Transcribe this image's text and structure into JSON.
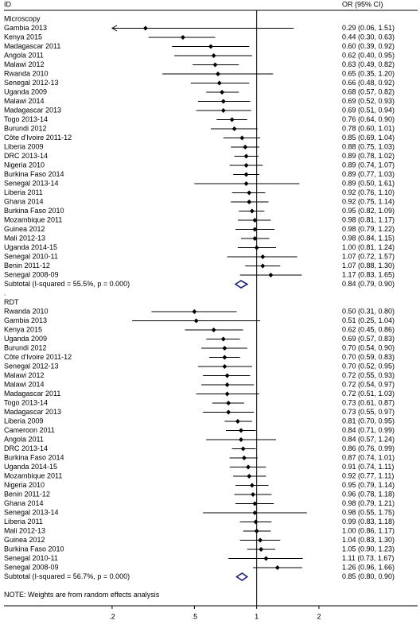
{
  "chart_data": {
    "type": "forest",
    "header": {
      "id": "ID",
      "effect": "OR (95% CI)"
    },
    "log_scale": true,
    "xlim": [
      0.06,
      6
    ],
    "xticks": [
      {
        "value": 0.2,
        "label": ".2"
      },
      {
        "value": 0.5,
        "label": ".5"
      },
      1,
      2
    ],
    "reference": 1,
    "marker_color": "#000000",
    "diamond_color": "#1a237e",
    "groups": [
      {
        "name": "Microscopy",
        "studies": [
          {
            "id": "Gambia 2013",
            "or": 0.29,
            "ci": [
              0.06,
              1.51
            ],
            "label": "0.29 (0.06, 1.51)"
          },
          {
            "id": "Kenya 2015",
            "or": 0.44,
            "ci": [
              0.3,
              0.63
            ],
            "label": "0.44 (0.30, 0.63)"
          },
          {
            "id": "Madagascar 2011",
            "or": 0.6,
            "ci": [
              0.39,
              0.92
            ],
            "label": "0.60 (0.39, 0.92)"
          },
          {
            "id": "Angola 2011",
            "or": 0.62,
            "ci": [
              0.4,
              0.95
            ],
            "label": "0.62 (0.40, 0.95)"
          },
          {
            "id": "Malawi 2012",
            "or": 0.63,
            "ci": [
              0.49,
              0.82
            ],
            "label": "0.63 (0.49, 0.82)"
          },
          {
            "id": "Rwanda 2010",
            "or": 0.65,
            "ci": [
              0.35,
              1.2
            ],
            "label": "0.65 (0.35, 1.20)"
          },
          {
            "id": "Senegal 2012-13",
            "or": 0.66,
            "ci": [
              0.48,
              0.92
            ],
            "label": "0.66 (0.48, 0.92)"
          },
          {
            "id": "Uganda 2009",
            "or": 0.68,
            "ci": [
              0.57,
              0.82
            ],
            "label": "0.68 (0.57, 0.82)"
          },
          {
            "id": "Malawi 2014",
            "or": 0.69,
            "ci": [
              0.52,
              0.93
            ],
            "label": "0.69 (0.52, 0.93)"
          },
          {
            "id": "Madagascar 2013",
            "or": 0.69,
            "ci": [
              0.51,
              0.94
            ],
            "label": "0.69 (0.51, 0.94)"
          },
          {
            "id": "Togo 2013-14",
            "or": 0.76,
            "ci": [
              0.64,
              0.9
            ],
            "label": "0.76 (0.64, 0.90)"
          },
          {
            "id": "Burundi 2012",
            "or": 0.78,
            "ci": [
              0.6,
              1.01
            ],
            "label": "0.78 (0.60, 1.01)"
          },
          {
            "id": "Côte d'Ivoire 2011-12",
            "or": 0.85,
            "ci": [
              0.69,
              1.04
            ],
            "label": "0.85 (0.69, 1.04)"
          },
          {
            "id": "Liberia 2009",
            "or": 0.88,
            "ci": [
              0.75,
              1.03
            ],
            "label": "0.88 (0.75, 1.03)"
          },
          {
            "id": "DRC 2013-14",
            "or": 0.89,
            "ci": [
              0.78,
              1.02
            ],
            "label": "0.89 (0.78, 1.02)"
          },
          {
            "id": "Nigeria 2010",
            "or": 0.89,
            "ci": [
              0.74,
              1.07
            ],
            "label": "0.89 (0.74, 1.07)"
          },
          {
            "id": "Burkina Faso 2014",
            "or": 0.89,
            "ci": [
              0.77,
              1.03
            ],
            "label": "0.89 (0.77, 1.03)"
          },
          {
            "id": "Senegal 2013-14",
            "or": 0.89,
            "ci": [
              0.5,
              1.61
            ],
            "label": "0.89 (0.50, 1.61)"
          },
          {
            "id": "Liberia 2011",
            "or": 0.92,
            "ci": [
              0.76,
              1.1
            ],
            "label": "0.92 (0.76, 1.10)"
          },
          {
            "id": "Ghana 2014",
            "or": 0.92,
            "ci": [
              0.75,
              1.14
            ],
            "label": "0.92 (0.75, 1.14)"
          },
          {
            "id": "Burkina Faso 2010",
            "or": 0.95,
            "ci": [
              0.82,
              1.09
            ],
            "label": "0.95 (0.82, 1.09)"
          },
          {
            "id": "Mozambique 2011",
            "or": 0.98,
            "ci": [
              0.81,
              1.17
            ],
            "label": "0.98 (0.81, 1.17)"
          },
          {
            "id": "Guinea 2012",
            "or": 0.98,
            "ci": [
              0.79,
              1.22
            ],
            "label": "0.98 (0.79, 1.22)"
          },
          {
            "id": "Mali 2012-13",
            "or": 0.98,
            "ci": [
              0.84,
              1.15
            ],
            "label": "0.98 (0.84, 1.15)"
          },
          {
            "id": "Uganda 2014-15",
            "or": 1.0,
            "ci": [
              0.81,
              1.24
            ],
            "label": "1.00 (0.81, 1.24)"
          },
          {
            "id": "Senegal 2010-11",
            "or": 1.07,
            "ci": [
              0.72,
              1.57
            ],
            "label": "1.07 (0.72, 1.57)"
          },
          {
            "id": "Benin 2011-12",
            "or": 1.07,
            "ci": [
              0.88,
              1.3
            ],
            "label": "1.07 (0.88, 1.30)"
          },
          {
            "id": "Senegal 2008-09",
            "or": 1.17,
            "ci": [
              0.83,
              1.65
            ],
            "label": "1.17 (0.83, 1.65)"
          }
        ],
        "subtotal": {
          "id": "Subtotal  (I-squared = 55.5%, p = 0.000)",
          "or": 0.84,
          "ci": [
            0.79,
            0.9
          ],
          "label": "0.84 (0.79, 0.90)"
        }
      },
      {
        "name": "RDT",
        "separator": ".",
        "studies": [
          {
            "id": "Rwanda 2010",
            "or": 0.5,
            "ci": [
              0.31,
              0.8
            ],
            "label": "0.50 (0.31, 0.80)"
          },
          {
            "id": "Gambia 2013",
            "or": 0.51,
            "ci": [
              0.25,
              1.04
            ],
            "label": "0.51 (0.25, 1.04)"
          },
          {
            "id": "Kenya 2015",
            "or": 0.62,
            "ci": [
              0.45,
              0.86
            ],
            "label": "0.62 (0.45, 0.86)"
          },
          {
            "id": "Uganda 2009",
            "or": 0.69,
            "ci": [
              0.57,
              0.83
            ],
            "label": "0.69 (0.57, 0.83)"
          },
          {
            "id": "Burundi 2012",
            "or": 0.7,
            "ci": [
              0.54,
              0.9
            ],
            "label": "0.70 (0.54, 0.90)"
          },
          {
            "id": "Côte d'Ivoire 2011-12",
            "or": 0.7,
            "ci": [
              0.59,
              0.83
            ],
            "label": "0.70 (0.59, 0.83)"
          },
          {
            "id": "Senegal 2012-13",
            "or": 0.7,
            "ci": [
              0.52,
              0.95
            ],
            "label": "0.70 (0.52, 0.95)"
          },
          {
            "id": "Malawi 2012",
            "or": 0.72,
            "ci": [
              0.55,
              0.93
            ],
            "label": "0.72 (0.55, 0.93)"
          },
          {
            "id": "Malawi 2014",
            "or": 0.72,
            "ci": [
              0.54,
              0.97
            ],
            "label": "0.72 (0.54, 0.97)"
          },
          {
            "id": "Madagascar 2011",
            "or": 0.72,
            "ci": [
              0.51,
              1.03
            ],
            "label": "0.72 (0.51, 1.03)"
          },
          {
            "id": "Togo 2013-14",
            "or": 0.73,
            "ci": [
              0.61,
              0.87
            ],
            "label": "0.73 (0.61, 0.87)"
          },
          {
            "id": "Madagascar 2013",
            "or": 0.73,
            "ci": [
              0.55,
              0.97
            ],
            "label": "0.73 (0.55, 0.97)"
          },
          {
            "id": "Liberia 2009",
            "or": 0.81,
            "ci": [
              0.7,
              0.95
            ],
            "label": "0.81 (0.70, 0.95)"
          },
          {
            "id": "Cameroon 2011",
            "or": 0.84,
            "ci": [
              0.71,
              0.99
            ],
            "label": "0.84 (0.71, 0.99)"
          },
          {
            "id": "Angola 2011",
            "or": 0.84,
            "ci": [
              0.57,
              1.24
            ],
            "label": "0.84 (0.57, 1.24)"
          },
          {
            "id": "DRC 2013-14",
            "or": 0.86,
            "ci": [
              0.76,
              0.99
            ],
            "label": "0.86 (0.76, 0.99)"
          },
          {
            "id": "Burkina Faso 2014",
            "or": 0.87,
            "ci": [
              0.74,
              1.01
            ],
            "label": "0.87 (0.74, 1.01)"
          },
          {
            "id": "Uganda 2014-15",
            "or": 0.91,
            "ci": [
              0.74,
              1.11
            ],
            "label": "0.91 (0.74, 1.11)"
          },
          {
            "id": "Mozambique 2011",
            "or": 0.92,
            "ci": [
              0.77,
              1.11
            ],
            "label": "0.92 (0.77, 1.11)"
          },
          {
            "id": "Nigeria 2010",
            "or": 0.95,
            "ci": [
              0.79,
              1.14
            ],
            "label": "0.95 (0.79, 1.14)"
          },
          {
            "id": "Benin 2011-12",
            "or": 0.96,
            "ci": [
              0.78,
              1.18
            ],
            "label": "0.96 (0.78, 1.18)"
          },
          {
            "id": "Ghana 2014",
            "or": 0.98,
            "ci": [
              0.79,
              1.21
            ],
            "label": "0.98 (0.79, 1.21)"
          },
          {
            "id": "Senegal 2013-14",
            "or": 0.98,
            "ci": [
              0.55,
              1.75
            ],
            "label": "0.98 (0.55, 1.75)"
          },
          {
            "id": "Liberia 2011",
            "or": 0.99,
            "ci": [
              0.83,
              1.18
            ],
            "label": "0.99 (0.83, 1.18)"
          },
          {
            "id": "Mali 2012-13",
            "or": 1.0,
            "ci": [
              0.86,
              1.17
            ],
            "label": "1.00 (0.86, 1.17)"
          },
          {
            "id": "Guinea 2012",
            "or": 1.04,
            "ci": [
              0.83,
              1.3
            ],
            "label": "1.04 (0.83, 1.30)"
          },
          {
            "id": "Burkina Faso 2010",
            "or": 1.05,
            "ci": [
              0.9,
              1.23
            ],
            "label": "1.05 (0.90, 1.23)"
          },
          {
            "id": "Senegal 2010-11",
            "or": 1.11,
            "ci": [
              0.73,
              1.67
            ],
            "label": "1.11 (0.73, 1.67)"
          },
          {
            "id": "Senegal 2008-09",
            "or": 1.26,
            "ci": [
              0.96,
              1.66
            ],
            "label": "1.26 (0.96, 1.66)"
          }
        ],
        "subtotal": {
          "id": "Subtotal  (I-squared = 56.7%, p = 0.000)",
          "or": 0.85,
          "ci": [
            0.8,
            0.9
          ],
          "label": "0.85 (0.80, 0.90)"
        }
      }
    ],
    "note": "NOTE: Weights are from random effects analysis"
  }
}
